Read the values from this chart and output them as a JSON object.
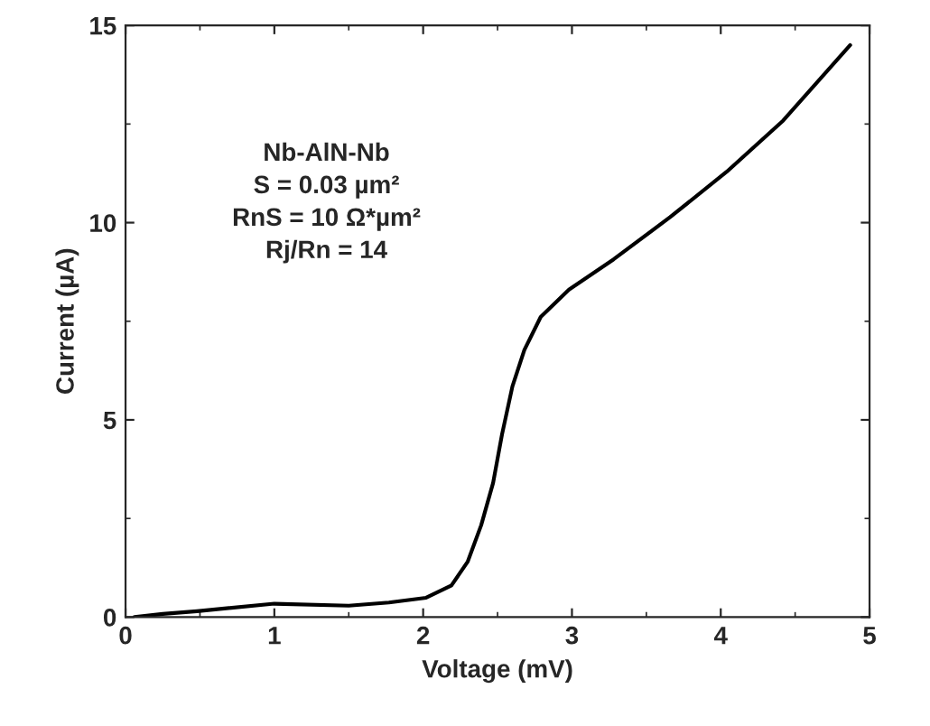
{
  "chart_data": {
    "type": "line",
    "xlabel": "Voltage (mV)",
    "ylabel": "Current (µA)",
    "x": [
      0.06,
      0.25,
      0.48,
      1.0,
      1.5,
      1.77,
      2.02,
      2.19,
      2.3,
      2.39,
      2.47,
      2.53,
      2.6,
      2.68,
      2.79,
      2.98,
      3.28,
      3.66,
      4.04,
      4.42,
      4.87
    ],
    "series": [
      {
        "color": "#000000",
        "values": [
          0,
          0.08,
          0.15,
          0.34,
          0.29,
          0.37,
          0.49,
          0.8,
          1.41,
          2.33,
          3.4,
          4.63,
          5.85,
          6.77,
          7.61,
          8.3,
          9.07,
          10.14,
          11.29,
          12.59,
          14.5
        ]
      }
    ],
    "xlim": [
      0,
      5
    ],
    "ylim": [
      0,
      15
    ],
    "xticks": [
      0,
      1,
      2,
      3,
      4,
      5
    ],
    "yticks": [
      0,
      5,
      10,
      15
    ],
    "grid": false,
    "legend": false,
    "marker": "none",
    "line_style": "solid",
    "annotations": [
      "Nb-AlN-Nb\nS = 0.03 µm²\nRnS = 10 Ω*µm²\nRj/Rn = 14"
    ]
  }
}
